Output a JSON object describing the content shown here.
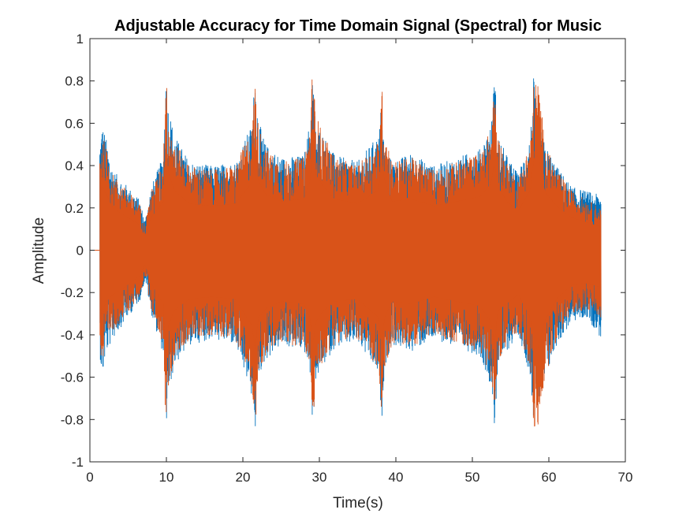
{
  "chart_data": {
    "type": "line",
    "title": "Adjustable Accuracy for Time Domain Signal (Spectral) for Music",
    "xlabel": "Time(s)",
    "ylabel": "Amplitude",
    "xlim": [
      0,
      70
    ],
    "ylim": [
      -1,
      1
    ],
    "x_ticks": [
      0,
      10,
      20,
      30,
      40,
      50,
      60,
      70
    ],
    "y_ticks": [
      -1,
      -0.8,
      -0.6,
      -0.4,
      -0.2,
      0,
      0.2,
      0.4,
      0.6,
      0.8,
      1
    ],
    "x_tick_labels": [
      "0",
      "10",
      "20",
      "30",
      "40",
      "50",
      "60",
      "70"
    ],
    "y_tick_labels": [
      "-1",
      "-0.8",
      "-0.6",
      "-0.4",
      "-0.2",
      "0",
      "0.2",
      "0.4",
      "0.6",
      "0.8",
      "1"
    ],
    "grid": false,
    "box": true,
    "signal_duration_s": 66.8,
    "series": [
      {
        "color": "#0072BD",
        "envelope": {
          "t": [
            0.0,
            1.2,
            1.3,
            1.6,
            2.0,
            3.0,
            4.5,
            6.5,
            7.2,
            8.0,
            9.6,
            9.9,
            10.2,
            11.0,
            13.0,
            16.0,
            19.0,
            21.2,
            21.6,
            22.0,
            23.0,
            25.0,
            28.0,
            28.8,
            29.1,
            29.5,
            30.5,
            32.0,
            35.0,
            37.8,
            38.1,
            38.5,
            39.5,
            42.0,
            45.0,
            48.0,
            51.0,
            52.5,
            52.9,
            53.3,
            54.5,
            56.0,
            57.6,
            58.0,
            58.6,
            59.5,
            61.0,
            63.0,
            65.0,
            66.8
          ],
          "top": [
            0.0,
            0.0,
            0.52,
            0.6,
            0.55,
            0.38,
            0.32,
            0.24,
            0.14,
            0.3,
            0.45,
            0.82,
            0.7,
            0.55,
            0.42,
            0.4,
            0.42,
            0.6,
            0.86,
            0.62,
            0.5,
            0.44,
            0.45,
            0.62,
            0.85,
            0.6,
            0.55,
            0.45,
            0.42,
            0.55,
            0.7,
            0.5,
            0.42,
            0.46,
            0.4,
            0.44,
            0.48,
            0.6,
            0.86,
            0.55,
            0.45,
            0.36,
            0.55,
            0.82,
            0.6,
            0.5,
            0.4,
            0.3,
            0.28,
            0.26
          ],
          "bottom": [
            0.0,
            0.0,
            -0.5,
            -0.62,
            -0.5,
            -0.42,
            -0.34,
            -0.24,
            -0.14,
            -0.3,
            -0.5,
            -0.88,
            -0.7,
            -0.55,
            -0.45,
            -0.42,
            -0.45,
            -0.7,
            -0.86,
            -0.6,
            -0.52,
            -0.45,
            -0.48,
            -0.6,
            -0.85,
            -0.62,
            -0.55,
            -0.46,
            -0.44,
            -0.6,
            -0.84,
            -0.55,
            -0.45,
            -0.48,
            -0.42,
            -0.46,
            -0.5,
            -0.65,
            -0.86,
            -0.55,
            -0.48,
            -0.4,
            -0.6,
            -0.82,
            -0.75,
            -0.62,
            -0.45,
            -0.34,
            -0.32,
            -0.42
          ]
        }
      },
      {
        "color": "#D95319",
        "envelope": {
          "t": [
            0.0,
            1.2,
            1.3,
            1.6,
            2.0,
            3.0,
            4.5,
            6.5,
            7.2,
            8.0,
            9.6,
            9.9,
            10.2,
            11.0,
            13.0,
            16.0,
            19.0,
            21.2,
            21.6,
            22.0,
            23.0,
            25.0,
            28.0,
            28.8,
            29.1,
            29.5,
            30.5,
            32.0,
            35.0,
            37.8,
            38.1,
            38.5,
            39.5,
            42.0,
            45.0,
            48.0,
            51.0,
            52.5,
            52.9,
            53.3,
            54.5,
            56.0,
            57.6,
            58.0,
            58.6,
            59.5,
            61.0,
            63.0,
            65.0,
            66.8
          ],
          "top": [
            0.0,
            0.0,
            0.48,
            0.56,
            0.5,
            0.36,
            0.3,
            0.22,
            0.12,
            0.28,
            0.42,
            0.88,
            0.68,
            0.52,
            0.4,
            0.38,
            0.4,
            0.58,
            0.82,
            0.6,
            0.48,
            0.42,
            0.44,
            0.6,
            0.88,
            0.65,
            0.55,
            0.44,
            0.4,
            0.52,
            0.82,
            0.6,
            0.42,
            0.44,
            0.38,
            0.42,
            0.46,
            0.58,
            0.78,
            0.55,
            0.42,
            0.34,
            0.52,
            0.78,
            0.82,
            0.5,
            0.38,
            0.28,
            0.24,
            0.2
          ],
          "bottom": [
            0.0,
            0.0,
            -0.46,
            -0.58,
            -0.46,
            -0.38,
            -0.32,
            -0.22,
            -0.12,
            -0.28,
            -0.46,
            -0.86,
            -0.66,
            -0.52,
            -0.42,
            -0.4,
            -0.42,
            -0.65,
            -0.86,
            -0.58,
            -0.5,
            -0.44,
            -0.46,
            -0.58,
            -0.86,
            -0.62,
            -0.52,
            -0.44,
            -0.42,
            -0.58,
            -0.87,
            -0.58,
            -0.44,
            -0.46,
            -0.4,
            -0.44,
            -0.48,
            -0.62,
            -0.84,
            -0.52,
            -0.46,
            -0.38,
            -0.58,
            -0.86,
            -0.84,
            -0.6,
            -0.42,
            -0.3,
            -0.28,
            -0.32
          ]
        }
      }
    ]
  }
}
